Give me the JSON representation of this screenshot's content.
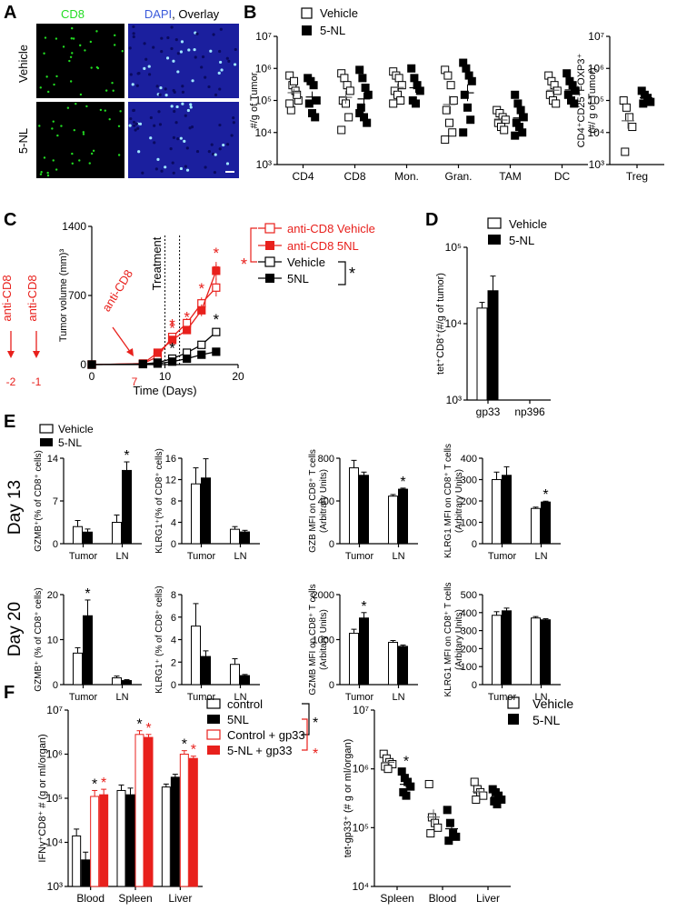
{
  "panels": {
    "A": "A",
    "B": "B",
    "C": "C",
    "D": "D",
    "E": "E",
    "F": "F"
  },
  "panel_a": {
    "header_cd8": "CD8",
    "header_dapi": "DAPI",
    "header_overlay": ", Overlay",
    "row_vehicle": "Vehicle",
    "row_5nl": "5-NL",
    "colors": {
      "cd8": "#22dd22",
      "dapi": "#3b5bdb",
      "black": "#000000",
      "blue_bg": "#1b1f9e"
    }
  },
  "legend_b": {
    "vehicle": "Vehicle",
    "nl": "5-NL"
  },
  "legend_c": {
    "cd8_vehicle": "anti-CD8 Vehicle",
    "cd8_5nl": "anti-CD8 5NL",
    "vehicle": "Vehicle",
    "nl": "5NL"
  },
  "panel_c_text": {
    "anti1": "anti-CD8",
    "anti2": "anti-CD8",
    "anti3": "anti-CD8",
    "treatment": "Treatment",
    "d_m2": "-2",
    "d_m1": "-1",
    "d_7": "7",
    "star": "*"
  },
  "legend_d": {
    "vehicle": "Vehicle",
    "nl": "5-NL"
  },
  "legend_e": {
    "vehicle": "Vehicle",
    "nl": "5-NL"
  },
  "panel_e_text": {
    "day13": "Day 13",
    "day20": "Day 20"
  },
  "legend_f1": {
    "control": "control",
    "nl": "5NL",
    "ctrl_gp33": "Control + gp33",
    "nl_gp33": "5-NL + gp33"
  },
  "legend_f2": {
    "vehicle": "Vehicle",
    "nl": "5-NL"
  },
  "colors": {
    "red": "#e8201c",
    "black": "#000000",
    "white": "#ffffff"
  },
  "chart_data": [
    {
      "id": "B1",
      "type": "scatter",
      "log_scale": true,
      "ylabel": "#/g of Tumor",
      "ylim": [
        1000,
        10000000
      ],
      "yticks": [
        "10³",
        "10⁴",
        "10⁵",
        "10⁶",
        "10⁷"
      ],
      "categories": [
        "CD4",
        "CD8",
        "Mon.",
        "Gran.",
        "TAM",
        "DC"
      ],
      "series": [
        {
          "name": "Vehicle",
          "points": [
            [
              600000,
              300000,
              200000,
              100000,
              50000,
              400000,
              150000,
              80000
            ],
            [
              700000,
              500000,
              300000,
              200000,
              100000,
              80000,
              30000,
              12000
            ],
            [
              800000,
              600000,
              500000,
              300000,
              200000,
              150000,
              100000,
              80000
            ],
            [
              900000,
              600000,
              300000,
              100000,
              50000,
              20000,
              10000,
              6000
            ],
            [
              50000,
              40000,
              30000,
              25000,
              20000,
              15000,
              12000
            ],
            [
              600000,
              400000,
              300000,
              200000,
              150000,
              100000,
              80000
            ]
          ]
        },
        {
          "name": "5-NL",
          "points": [
            [
              500000,
              400000,
              300000,
              100000,
              80000,
              40000,
              30000
            ],
            [
              900000,
              500000,
              250000,
              150000,
              60000,
              30000,
              20000,
              40000
            ],
            [
              1000000,
              500000,
              300000,
              200000,
              100000,
              80000
            ],
            [
              1500000,
              1000000,
              600000,
              400000,
              150000,
              60000,
              25000,
              10000
            ],
            [
              150000,
              80000,
              50000,
              30000,
              20000,
              15000,
              10000,
              8000
            ],
            [
              700000,
              400000,
              300000,
              200000,
              150000,
              100000,
              80000
            ]
          ]
        }
      ]
    },
    {
      "id": "B2",
      "type": "scatter",
      "log_scale": true,
      "ylabel": "CD4⁺CD25⁺FOXP3⁺ (#/ g of Tumor)",
      "ylim": [
        1000,
        10000000
      ],
      "yticks": [
        "10³",
        "10⁴",
        "10⁵",
        "10⁶",
        "10⁷"
      ],
      "categories": [
        "Treg"
      ],
      "series": [
        {
          "name": "Vehicle",
          "points": [
            [
              100000,
              60000,
              30000,
              15000,
              2500
            ]
          ]
        },
        {
          "name": "5-NL",
          "points": [
            [
              200000,
              150000,
              120000,
              90000,
              80000
            ]
          ]
        }
      ]
    },
    {
      "id": "C",
      "type": "line",
      "xlabel": "Time (Days)",
      "ylabel": "Tumor volume (mm)³",
      "xlim": [
        0,
        20
      ],
      "ylim": [
        0,
        1400
      ],
      "xticks": [
        "0",
        "10",
        "20"
      ],
      "yticks": [
        "0",
        "700",
        "1400"
      ],
      "x": [
        0,
        7,
        9,
        11,
        13,
        15,
        17
      ],
      "series": [
        {
          "name": "anti-CD8 Vehicle",
          "values": [
            0,
            10,
            80,
            280,
            420,
            620,
            780
          ],
          "err": [
            0,
            5,
            20,
            40,
            50,
            60,
            90
          ],
          "star_at": [
            11,
            15,
            17
          ]
        },
        {
          "name": "anti-CD8 5NL",
          "values": [
            0,
            10,
            120,
            250,
            350,
            550,
            950
          ],
          "err": [
            0,
            5,
            20,
            30,
            40,
            60,
            90
          ],
          "star_at": [
            11,
            13,
            17
          ]
        },
        {
          "name": "Vehicle",
          "values": [
            0,
            5,
            20,
            60,
            120,
            200,
            330
          ],
          "err": [
            0,
            3,
            10,
            20,
            25,
            30,
            40
          ],
          "star_at": [
            11,
            17
          ]
        },
        {
          "name": "5NL",
          "values": [
            0,
            5,
            10,
            30,
            60,
            100,
            130
          ],
          "err": [
            0,
            3,
            5,
            10,
            15,
            20,
            30
          ],
          "star_at": []
        }
      ]
    },
    {
      "id": "D",
      "type": "bar",
      "log_scale": true,
      "ylabel": "tet⁺CD8⁺(#/g of tumor)",
      "ylim": [
        1000,
        100000
      ],
      "yticks": [
        "10³",
        "10⁴",
        "10⁵"
      ],
      "categories": [
        "gp33",
        "np396"
      ],
      "series": [
        {
          "name": "Vehicle",
          "values": [
            16000,
            null
          ],
          "err": [
            3000,
            null
          ]
        },
        {
          "name": "5-NL",
          "values": [
            27000,
            null
          ],
          "err": [
            15000,
            null
          ]
        }
      ]
    },
    {
      "id": "E1",
      "type": "bar",
      "ylabel": "GZMB⁺(% of CD8⁺ cells)",
      "ylim": [
        0,
        14
      ],
      "yticks": [
        "0",
        "7",
        "14"
      ],
      "categories": [
        "Tumor",
        "LN"
      ],
      "series": [
        {
          "name": "Vehicle",
          "values": [
            2.8,
            3.5
          ],
          "err": [
            1.0,
            1.2
          ]
        },
        {
          "name": "5-NL",
          "values": [
            1.9,
            12.0
          ],
          "err": [
            0.5,
            1.4
          ]
        }
      ],
      "stars": [
        [
          1,
          1
        ]
      ]
    },
    {
      "id": "E2",
      "type": "bar",
      "ylabel": "KLRG1⁺(% of CD8⁺ cells)",
      "ylim": [
        0,
        16
      ],
      "yticks": [
        "0",
        "4",
        "8",
        "12",
        "16"
      ],
      "categories": [
        "Tumor",
        "LN"
      ],
      "series": [
        {
          "name": "Vehicle",
          "values": [
            11.2,
            2.7
          ],
          "err": [
            3.0,
            0.5
          ]
        },
        {
          "name": "5-NL",
          "values": [
            12.3,
            2.2
          ],
          "err": [
            3.6,
            0.3
          ]
        }
      ],
      "stars": []
    },
    {
      "id": "E3",
      "type": "bar",
      "ylabel": "GZB MFI  on CD8⁺ T cells (Arbitrary Units)",
      "ylim": [
        0,
        800
      ],
      "yticks": [
        "0",
        "400",
        "800"
      ],
      "categories": [
        "Tumor",
        "LN"
      ],
      "series": [
        {
          "name": "Vehicle",
          "values": [
            710,
            445
          ],
          "err": [
            70,
            15
          ]
        },
        {
          "name": "5-NL",
          "values": [
            640,
            510
          ],
          "err": [
            30,
            10
          ]
        }
      ],
      "stars": [
        [
          1,
          1
        ]
      ]
    },
    {
      "id": "E4",
      "type": "bar",
      "ylabel": "KLRG1 MFI  on CD8⁺ T cells (Arbitrary Units)",
      "ylim": [
        0,
        400
      ],
      "yticks": [
        "0",
        "100",
        "200",
        "300",
        "400"
      ],
      "categories": [
        "Tumor",
        "LN"
      ],
      "series": [
        {
          "name": "Vehicle",
          "values": [
            300,
            165
          ],
          "err": [
            35,
            6
          ]
        },
        {
          "name": "5-NL",
          "values": [
            320,
            195
          ],
          "err": [
            40,
            4
          ]
        }
      ],
      "stars": [
        [
          1,
          1
        ]
      ]
    },
    {
      "id": "E5",
      "type": "bar",
      "ylabel": "GZMB⁺ (% of CD8⁺ cells)",
      "ylim": [
        0,
        20
      ],
      "yticks": [
        "0",
        "10",
        "20"
      ],
      "categories": [
        "Tumor",
        "LN"
      ],
      "series": [
        {
          "name": "Vehicle",
          "values": [
            7.0,
            1.5
          ],
          "err": [
            1.2,
            0.4
          ]
        },
        {
          "name": "5-NL",
          "values": [
            15.3,
            0.9
          ],
          "err": [
            3.5,
            0.2
          ]
        }
      ],
      "stars": [
        [
          1,
          0
        ]
      ]
    },
    {
      "id": "E6",
      "type": "bar",
      "ylabel": "KLRG1⁺ (% of CD8⁺ cells)",
      "ylim": [
        0,
        8
      ],
      "yticks": [
        "0",
        "2",
        "4",
        "6",
        "8"
      ],
      "categories": [
        "Tumor",
        "LN"
      ],
      "series": [
        {
          "name": "Vehicle",
          "values": [
            5.2,
            1.8
          ],
          "err": [
            2.0,
            0.5
          ]
        },
        {
          "name": "5-NL",
          "values": [
            2.5,
            0.8
          ],
          "err": [
            0.5,
            0.1
          ]
        }
      ],
      "stars": []
    },
    {
      "id": "E7",
      "type": "bar",
      "ylabel": "GZMB MFI on CD8⁺ T cells (Arbitary Units)",
      "ylim": [
        0,
        2000
      ],
      "yticks": [
        "0",
        "1000",
        "2000"
      ],
      "categories": [
        "Tumor",
        "LN"
      ],
      "series": [
        {
          "name": "Vehicle",
          "values": [
            1140,
            940
          ],
          "err": [
            90,
            40
          ]
        },
        {
          "name": "5-NL",
          "values": [
            1480,
            850
          ],
          "err": [
            120,
            30
          ]
        }
      ],
      "stars": [
        [
          1,
          0
        ]
      ]
    },
    {
      "id": "E8",
      "type": "bar",
      "ylabel": "KLRG1 MFI on CD8⁺ T cells (Arbitary Units)",
      "ylim": [
        0,
        500
      ],
      "yticks": [
        "0",
        "100",
        "200",
        "300",
        "400",
        "500"
      ],
      "categories": [
        "Tumor",
        "LN"
      ],
      "series": [
        {
          "name": "Vehicle",
          "values": [
            385,
            370
          ],
          "err": [
            20,
            8
          ]
        },
        {
          "name": "5-NL",
          "values": [
            410,
            360
          ],
          "err": [
            15,
            6
          ]
        }
      ],
      "stars": []
    },
    {
      "id": "F1",
      "type": "bar",
      "log_scale": true,
      "ylabel": "IFNγ⁺CD8⁺ # (g or ml/organ)",
      "ylim": [
        1000,
        10000000
      ],
      "yticks": [
        "10³",
        "10⁴",
        "10⁵",
        "10⁶",
        "10⁷"
      ],
      "categories": [
        "Blood",
        "Spleen",
        "Liver"
      ],
      "series": [
        {
          "name": "control",
          "values": [
            14000,
            150000,
            180000
          ],
          "err": [
            6000,
            50000,
            30000
          ]
        },
        {
          "name": "5NL",
          "values": [
            4000,
            120000,
            300000
          ],
          "err": [
            2000,
            50000,
            50000
          ]
        },
        {
          "name": "Control + gp33",
          "values": [
            110000,
            2800000,
            1000000
          ],
          "err": [
            40000,
            600000,
            200000
          ]
        },
        {
          "name": "5-NL + gp33",
          "values": [
            120000,
            2400000,
            800000
          ],
          "err": [
            40000,
            400000,
            100000
          ]
        }
      ],
      "stars": [
        [
          2,
          0
        ],
        [
          3,
          0
        ],
        [
          2,
          1
        ],
        [
          3,
          1
        ],
        [
          2,
          2
        ],
        [
          3,
          2
        ]
      ]
    },
    {
      "id": "F2",
      "type": "scatter",
      "log_scale": true,
      "ylabel": "tet-gp33⁺ (# g or ml/organ)",
      "ylim": [
        10000,
        10000000
      ],
      "yticks": [
        "10⁴",
        "10⁵",
        "10⁶",
        "10⁷"
      ],
      "categories": [
        "Spleen",
        "Blood",
        "Liver"
      ],
      "series": [
        {
          "name": "Vehicle",
          "points": [
            [
              1800000,
              1500000,
              1300000,
              1200000,
              1100000,
              1000000
            ],
            [
              550000,
              150000,
              120000,
              100000,
              80000
            ],
            [
              600000,
              450000,
              400000,
              350000,
              300000
            ]
          ]
        },
        {
          "name": "5-NL",
          "points": [
            [
              900000,
              700000,
              600000,
              500000,
              400000,
              350000
            ],
            [
              200000,
              120000,
              80000,
              70000,
              60000
            ],
            [
              450000,
              400000,
              350000,
              300000,
              280000,
              250000
            ]
          ]
        }
      ],
      "stars": [
        [
          1,
          0
        ]
      ]
    }
  ]
}
